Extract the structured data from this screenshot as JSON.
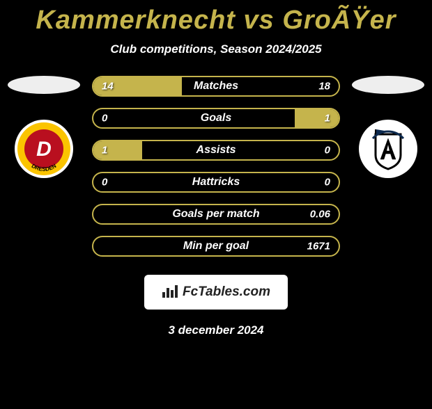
{
  "title": "Kammerknecht vs GroÃŸer",
  "subtitle": "Club competitions, Season 2024/2025",
  "date": "3 december 2024",
  "brand": "FcTables.com",
  "colors": {
    "accent": "#c5b44c",
    "accent_dark": "#a89a3e",
    "bg": "#000000",
    "text": "#ffffff",
    "ellipse": "#eeeeee"
  },
  "left_team": {
    "badge_bg": "#ffffff",
    "badge_ring": "#fbc400",
    "badge_inner": "#b90f1f",
    "badge_letter": "D",
    "badge_text": "DRESDEN"
  },
  "right_team": {
    "badge_bg": "#ffffff",
    "badge_inner": "#0d2a4f",
    "badge_shield_stroke": "#000000",
    "badge_letter": "A"
  },
  "rows": [
    {
      "label": "Matches",
      "left": "14",
      "right": "18",
      "left_pct": 36,
      "right_pct": 0
    },
    {
      "label": "Goals",
      "left": "0",
      "right": "1",
      "left_pct": 0,
      "right_pct": 18
    },
    {
      "label": "Assists",
      "left": "1",
      "right": "0",
      "left_pct": 20,
      "right_pct": 0
    },
    {
      "label": "Hattricks",
      "left": "0",
      "right": "0",
      "left_pct": 0,
      "right_pct": 0
    },
    {
      "label": "Goals per match",
      "left": "",
      "right": "0.06",
      "left_pct": 0,
      "right_pct": 0
    },
    {
      "label": "Min per goal",
      "left": "",
      "right": "1671",
      "left_pct": 0,
      "right_pct": 0
    }
  ],
  "row_style": {
    "border_color": "#c5b44c",
    "fill_color": "#c5b44c",
    "font_size": 16,
    "height": 30
  }
}
